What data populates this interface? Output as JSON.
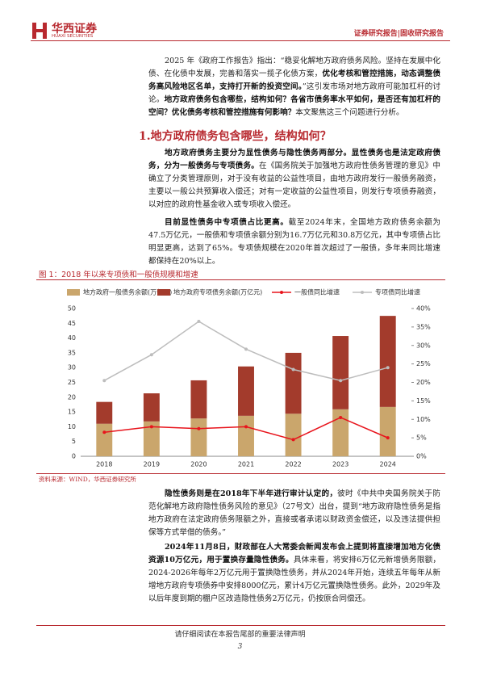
{
  "header": {
    "logo_cn": "华西证券",
    "logo_en": "HUAXI SECURITIES",
    "report_type": "证券研究报告|固收研究报告"
  },
  "paragraphs": [
    {
      "runs": [
        {
          "text": "2025 年《政府工作报告》指出：“稳妥化解地方政府债务风险。坚持在发展中化债、在化债中发展，完善和落实一揽子化债方案，",
          "bold": false
        },
        {
          "text": "优化考核和管控措施，动态调整债务高风险地区名单，支持打开新的投资空间。",
          "bold": true
        },
        {
          "text": "”这引发市场对地方政府可能加杠杆的讨论。",
          "bold": false
        },
        {
          "text": "地方政府债务包含哪些，结构如何？各省市债务率水平如何，是否还有加杠杆的空间？优化债务考核和管控措施有何影响？",
          "bold": true
        },
        {
          "text": "本文聚焦这三个问题进行分析。",
          "bold": false
        }
      ]
    },
    {
      "runs": [
        {
          "text": "地方政府债务主要分为显性债务与隐性债务两部分。显性债务也是法定政府债务，分为一般债务与专项债务。",
          "bold": true
        },
        {
          "text": "在《国务院关于加强地方政府性债务管理的意见》中确立了分类管理原则，对于没有收益的公益性项目，由地方政府发行一般债务融资，主要以一般公共预算收入偿还；对有一定收益的公益性项目，则发行专项债券融资，以对应的政府性基金收入或专项收入偿还。",
          "bold": false
        }
      ]
    },
    {
      "runs": [
        {
          "text": "目前显性债务中专项债占比更高。",
          "bold": true
        },
        {
          "text": "截至2024年末，全国地方政府债务余额为47.5万亿元，一般债和专项债余额分别为16.7万亿元和30.8万亿元，其中专项债占比明显更高，达到了65%。专项债规模在2020年首次超过了一般债，多年来同比增速都保持在20%以上。",
          "bold": false
        }
      ]
    },
    {
      "runs": [
        {
          "text": "隐性债务则是在2018年下半年进行审计认定的，",
          "bold": true
        },
        {
          "text": "彼时《中共中央国务院关于防范化解地方政府隐性债务风险的意见》（27号文）出台，提到“地方政府隐性债务是指地方政府在法定政府债务限额之外，直接或者承诺以财政资金偿还，以及违法提供担保等方式举借的债务。”",
          "bold": false
        }
      ]
    },
    {
      "runs": [
        {
          "text": "2024年11月8日，财政部在人大常委会新闻发布会上提到将直接增加地方化债资源10万亿元，用于置换存量隐性债务。",
          "bold": true
        },
        {
          "text": "具体来看，将安排6万亿元新增债务限额，2024-2026年每年2万亿元用于置换隐性债务，并从2024年开始，连续五年每年从新增地方政府专项债券中安排8000亿元，累计4万亿元置换隐性债务。此外，2029年及以后年度到期的棚户区改造隐性债务2万亿元，仍按原合同偿还。",
          "bold": false
        }
      ]
    }
  ],
  "heading": "1.地方政府债务包含哪些，结构如何？",
  "figure": {
    "caption": "图 1：2018 年以来专项债和一般债规模和增速",
    "source": "资料来源：WIND，华西证券研究所"
  },
  "chart_data": {
    "type": "bar",
    "categories": [
      "2018",
      "2019",
      "2020",
      "2021",
      "2022",
      "2023",
      "2024"
    ],
    "series": [
      {
        "name": "地方政府一般债务余额(万亿元)",
        "color": "#caa66c",
        "values": [
          11.0,
          11.8,
          12.8,
          13.7,
          14.4,
          15.9,
          16.7
        ]
      },
      {
        "name": "地方政府专项债务余额(万亿元)",
        "color": "#a33b2c",
        "values": [
          7.4,
          9.5,
          12.9,
          16.7,
          20.6,
          24.8,
          30.8
        ]
      },
      {
        "name": "一般债同比增速",
        "color": "#e8141c",
        "axis": "y2",
        "type": "line",
        "values": [
          6.5,
          8,
          7.5,
          8,
          4.5,
          10.5,
          5
        ]
      },
      {
        "name": "专项债同比增速",
        "color": "#bdbdbd",
        "axis": "y2",
        "type": "line",
        "values": [
          20.5,
          27.5,
          36.5,
          29,
          23.5,
          20.5,
          24
        ]
      }
    ],
    "ylim": [
      0,
      50
    ],
    "yticks": [
      0,
      5,
      10,
      15,
      20,
      25,
      30,
      35,
      40,
      45,
      50
    ],
    "y2lim": [
      0,
      40
    ],
    "y2ticks": [
      {
        "value": 0,
        "label": "0%"
      },
      {
        "value": 5,
        "label": "5%"
      },
      {
        "value": 10,
        "label": "10%"
      },
      {
        "value": 15,
        "label": "15%"
      },
      {
        "value": 20,
        "label": "20%"
      },
      {
        "value": 25,
        "label": "25%"
      },
      {
        "value": 30,
        "label": "30%"
      },
      {
        "value": 35,
        "label": "35%"
      },
      {
        "value": 40,
        "label": "40%"
      }
    ],
    "stacked": true,
    "legend": "top"
  },
  "footer": {
    "notice": "请仔细阅读在本报告尾部的重要法律声明",
    "page": "3"
  }
}
